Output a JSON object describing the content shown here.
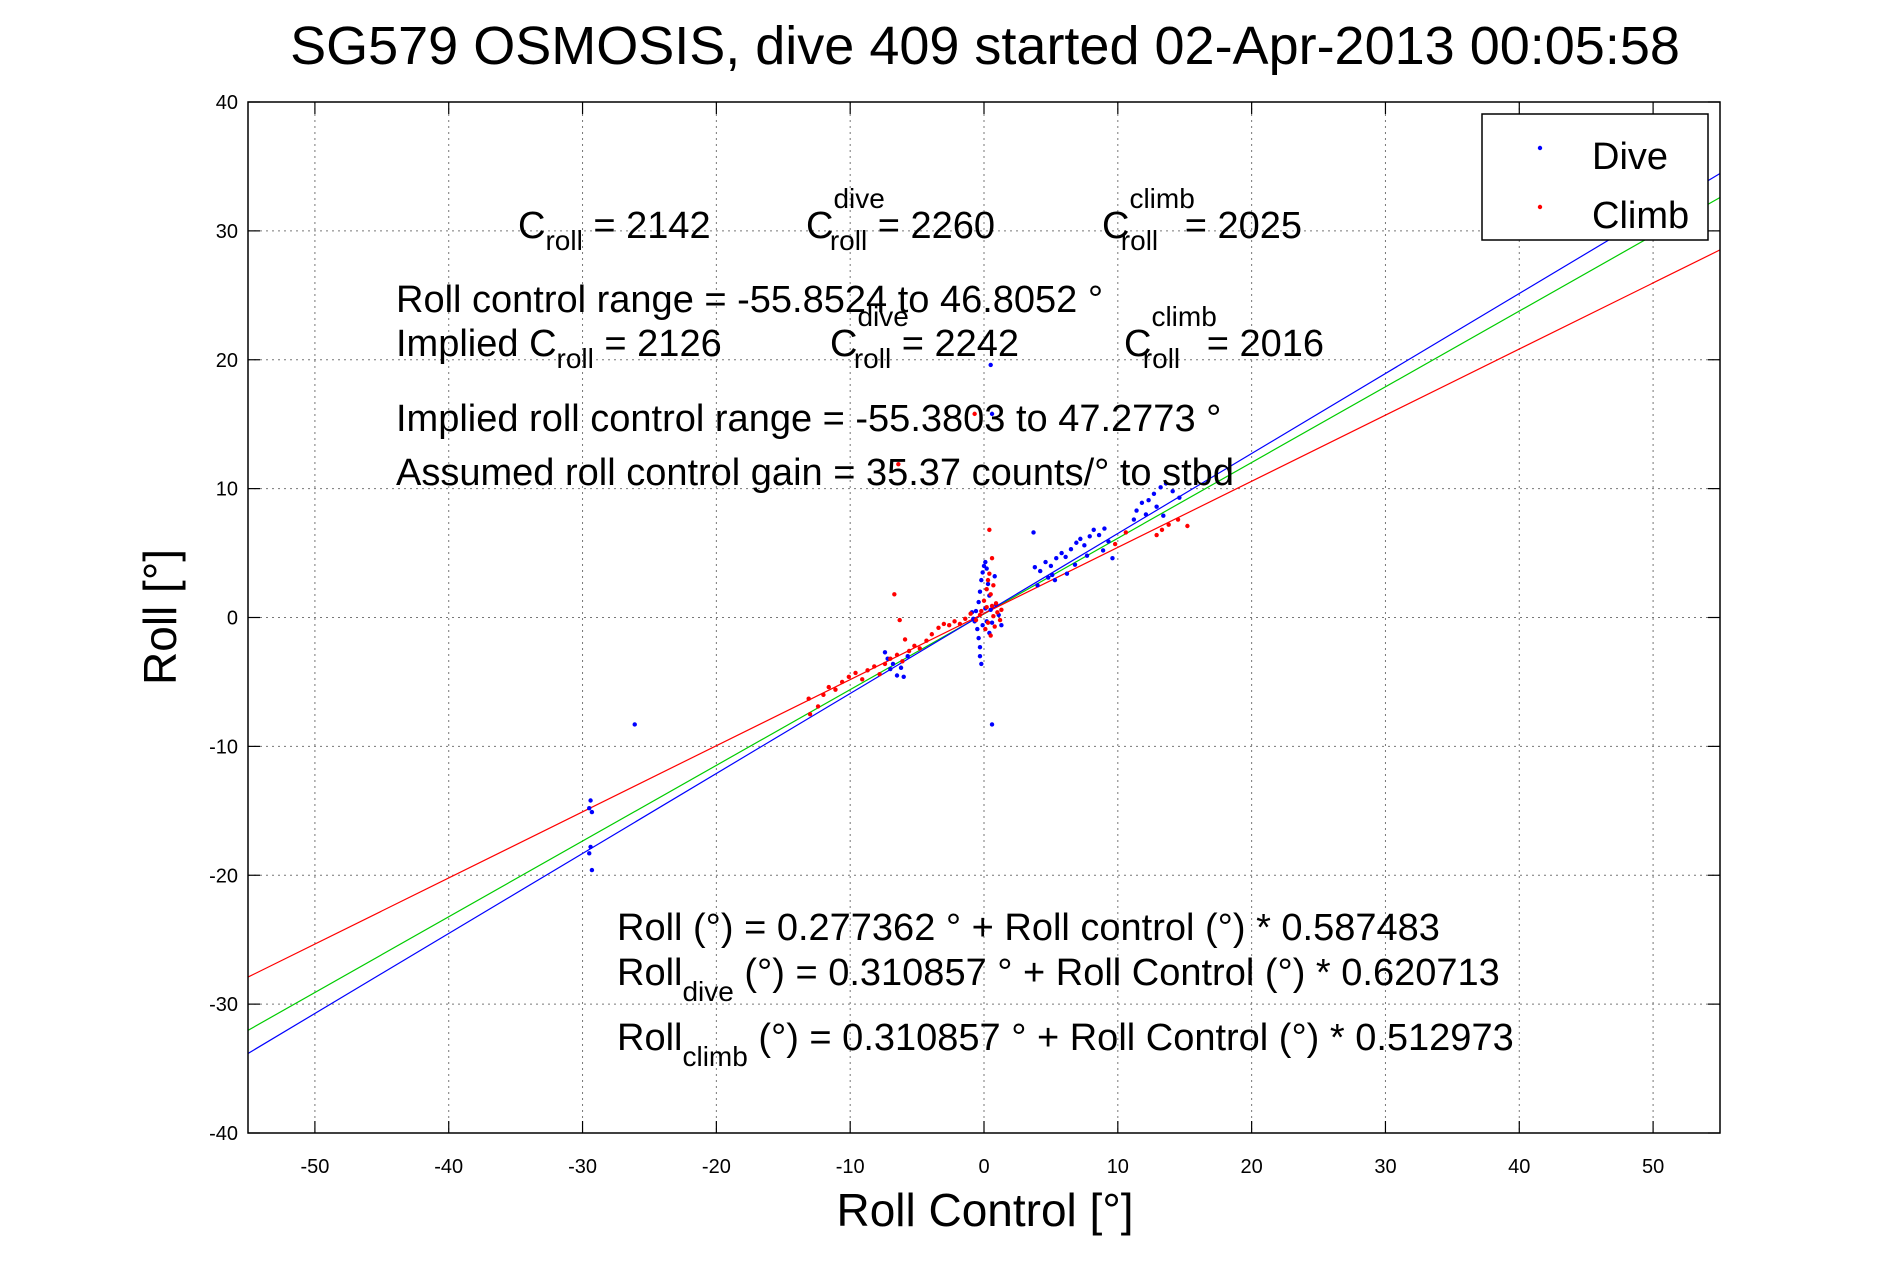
{
  "chart_data": {
    "type": "scatter",
    "title": "SG579 OSMOSIS, dive 409 started 02-Apr-2013 00:05:58",
    "xlabel": "Roll Control [°]",
    "ylabel": "Roll [°]",
    "xlim": [
      -55,
      55
    ],
    "ylim": [
      -40,
      40
    ],
    "xticks": [
      "-50",
      "-40",
      "-30",
      "-20",
      "-10",
      "0",
      "10",
      "20",
      "30",
      "40",
      "50"
    ],
    "yticks": [
      "40",
      "30",
      "20",
      "10",
      "0",
      "-10",
      "-20",
      "-30",
      "-40"
    ],
    "grid": true,
    "legend_position": "top-right",
    "colors": {
      "dive": "#0000ff",
      "climb": "#ff0000",
      "fit": "#00cc00"
    },
    "series": [
      {
        "name": "Dive",
        "color": "#0000ff",
        "points": [
          [
            -29.4,
            -14.2
          ],
          [
            -29.5,
            -14.8
          ],
          [
            -29.3,
            -15.1
          ],
          [
            -29.4,
            -17.8
          ],
          [
            -29.5,
            -18.3
          ],
          [
            -29.3,
            -19.6
          ],
          [
            -26.1,
            -8.3
          ],
          [
            -7.2,
            -3.2
          ],
          [
            -7.0,
            -4.0
          ],
          [
            -6.8,
            -3.6
          ],
          [
            -6.5,
            -4.5
          ],
          [
            -7.4,
            -2.7
          ],
          [
            -6.2,
            -3.9
          ],
          [
            -6.0,
            -4.6
          ],
          [
            -5.7,
            -3.0
          ],
          [
            -0.7,
            -0.3
          ],
          [
            -0.5,
            -0.9
          ],
          [
            -0.4,
            -1.6
          ],
          [
            -0.3,
            -2.3
          ],
          [
            -0.3,
            -3.0
          ],
          [
            -0.2,
            -3.6
          ],
          [
            -0.6,
            0.5
          ],
          [
            -0.4,
            1.2
          ],
          [
            -0.3,
            2.0
          ],
          [
            -0.2,
            2.9
          ],
          [
            -0.1,
            3.5
          ],
          [
            0.0,
            4.0
          ],
          [
            0.1,
            4.3
          ],
          [
            0.2,
            3.8
          ],
          [
            0.3,
            2.6
          ],
          [
            0.4,
            1.7
          ],
          [
            0.5,
            0.6
          ],
          [
            0.6,
            -0.4
          ],
          [
            0.4,
            -1.2
          ],
          [
            0.6,
            -8.3
          ],
          [
            0.5,
            19.6
          ],
          [
            0.6,
            15.8
          ],
          [
            0.8,
            3.2
          ],
          [
            0.9,
            1.0
          ],
          [
            1.1,
            0.2
          ],
          [
            1.3,
            -0.6
          ],
          [
            -0.8,
            -0.1
          ],
          [
            -0.9,
            0.4
          ],
          [
            0.2,
            -0.3
          ],
          [
            0.1,
            0.7
          ],
          [
            -0.1,
            -0.6
          ],
          [
            3.8,
            3.9
          ],
          [
            4.2,
            3.6
          ],
          [
            4.6,
            4.3
          ],
          [
            5.0,
            4.0
          ],
          [
            5.4,
            4.6
          ],
          [
            5.8,
            5.0
          ],
          [
            6.1,
            4.7
          ],
          [
            6.5,
            5.3
          ],
          [
            6.9,
            5.8
          ],
          [
            7.2,
            6.1
          ],
          [
            7.5,
            5.6
          ],
          [
            7.9,
            6.3
          ],
          [
            8.2,
            6.8
          ],
          [
            8.6,
            6.4
          ],
          [
            9.0,
            6.9
          ],
          [
            9.3,
            5.9
          ],
          [
            4.8,
            3.1
          ],
          [
            5.3,
            2.9
          ],
          [
            6.2,
            3.4
          ],
          [
            6.8,
            4.1
          ],
          [
            7.7,
            4.8
          ],
          [
            8.9,
            5.2
          ],
          [
            9.6,
            4.6
          ],
          [
            4.0,
            2.5
          ],
          [
            3.7,
            6.6
          ],
          [
            5.1,
            3.3
          ],
          [
            11.4,
            8.3
          ],
          [
            11.8,
            8.9
          ],
          [
            12.3,
            9.1
          ],
          [
            12.7,
            9.6
          ],
          [
            13.2,
            10.1
          ],
          [
            13.6,
            10.4
          ],
          [
            14.1,
            9.8
          ],
          [
            12.9,
            8.6
          ],
          [
            13.4,
            7.9
          ],
          [
            14.6,
            9.3
          ],
          [
            11.2,
            7.6
          ],
          [
            12.1,
            8.0
          ]
        ]
      },
      {
        "name": "Climb",
        "color": "#ff0000",
        "points": [
          [
            -13.1,
            -6.3
          ],
          [
            -13.0,
            -7.5
          ],
          [
            -12.4,
            -6.9
          ],
          [
            -12.0,
            -6.0
          ],
          [
            -11.6,
            -5.4
          ],
          [
            -11.1,
            -5.6
          ],
          [
            -10.6,
            -5.0
          ],
          [
            -10.1,
            -4.6
          ],
          [
            -9.6,
            -4.3
          ],
          [
            -9.1,
            -4.8
          ],
          [
            -8.7,
            -4.1
          ],
          [
            -8.2,
            -3.8
          ],
          [
            -7.8,
            -4.4
          ],
          [
            -7.4,
            -3.6
          ],
          [
            -7.0,
            -3.2
          ],
          [
            -6.5,
            -2.9
          ],
          [
            -6.1,
            -3.4
          ],
          [
            -5.6,
            -2.6
          ],
          [
            -5.2,
            -2.2
          ],
          [
            -4.8,
            -2.4
          ],
          [
            -4.3,
            -1.8
          ],
          [
            -3.9,
            -1.3
          ],
          [
            -3.4,
            -0.8
          ],
          [
            -3.0,
            -0.5
          ],
          [
            -2.6,
            -0.6
          ],
          [
            -2.2,
            -0.3
          ],
          [
            -1.8,
            -0.5
          ],
          [
            -1.4,
            -0.1
          ],
          [
            -6.7,
            1.8
          ],
          [
            -6.3,
            -0.2
          ],
          [
            -5.9,
            -1.7
          ],
          [
            -1.0,
            0.3
          ],
          [
            -0.6,
            -0.2
          ],
          [
            -0.2,
            0.5
          ],
          [
            0.0,
            1.3
          ],
          [
            0.2,
            2.2
          ],
          [
            0.3,
            2.9
          ],
          [
            0.4,
            3.4
          ],
          [
            0.5,
            1.8
          ],
          [
            0.6,
            0.9
          ],
          [
            0.7,
            0.1
          ],
          [
            0.8,
            -0.7
          ],
          [
            0.5,
            -1.4
          ],
          [
            0.3,
            -0.4
          ],
          [
            0.1,
            -0.9
          ],
          [
            0.4,
            6.8
          ],
          [
            0.6,
            4.6
          ],
          [
            0.7,
            2.5
          ],
          [
            0.9,
            1.1
          ],
          [
            1.0,
            0.4
          ],
          [
            1.2,
            -0.2
          ],
          [
            1.3,
            0.6
          ],
          [
            0.2,
            0.8
          ],
          [
            -0.3,
            0.2
          ],
          [
            -6.4,
            11.9
          ],
          [
            -0.7,
            15.8
          ],
          [
            13.8,
            7.2
          ],
          [
            14.5,
            7.6
          ],
          [
            15.2,
            7.1
          ],
          [
            12.9,
            6.4
          ],
          [
            13.3,
            6.8
          ],
          [
            10.6,
            6.6
          ],
          [
            9.8,
            5.7
          ]
        ]
      }
    ],
    "fit_lines": [
      {
        "name": "Roll",
        "color": "#00cc00",
        "intercept": 0.277362,
        "slope": 0.587483
      },
      {
        "name": "Roll dive",
        "color": "#0000ff",
        "intercept": 0.310857,
        "slope": 0.620713
      },
      {
        "name": "Roll climb",
        "color": "#ff0000",
        "intercept": 0.310857,
        "slope": 0.512973
      }
    ],
    "annotations": {
      "c_roll": "2142",
      "c_roll_dive": "2260",
      "c_roll_climb": "2025",
      "roll_control_range": "Roll control range = -55.8524 to 46.8052 °",
      "implied_prefix": "Implied ",
      "implied_c_roll": "2126",
      "implied_c_roll_dive": "2242",
      "implied_c_roll_climb": "2016",
      "implied_range": "Implied roll control range = -55.3803 to 47.2773 °",
      "gain": "Assumed roll control gain = 35.37 counts/° to stbd",
      "eq_all": "Roll (°) = 0.277362 ° + Roll control (°) * 0.587483",
      "eq_dive_rest": " (°) = 0.310857 ° + Roll Control (°) * 0.620713",
      "eq_climb_rest": " (°) = 0.310857 ° + Roll Control (°) * 0.512973",
      "sym_C": "C",
      "sym_roll_word": "Roll",
      "sub_roll": "roll",
      "sub_dive": "dive",
      "sub_climb": "climb",
      "eq_sign": " = "
    }
  }
}
